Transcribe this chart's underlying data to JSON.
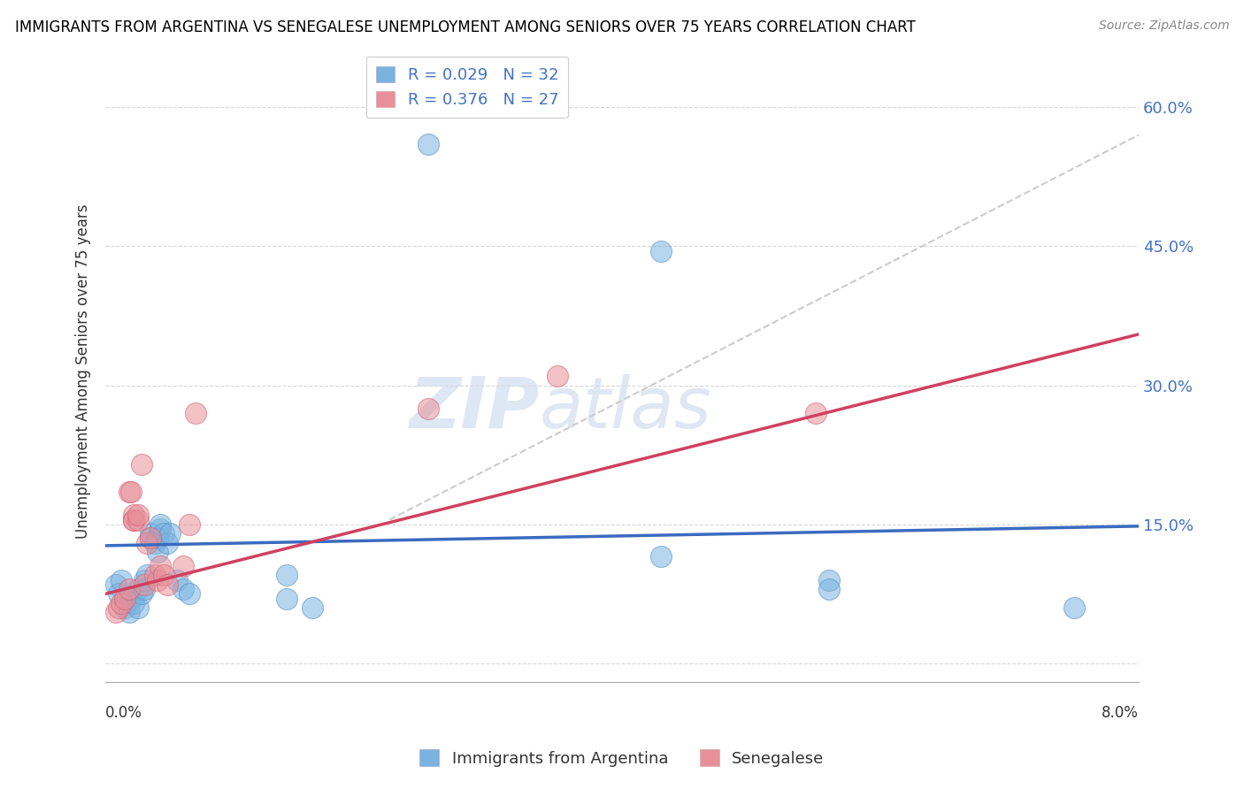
{
  "title": "IMMIGRANTS FROM ARGENTINA VS SENEGALESE UNEMPLOYMENT AMONG SENIORS OVER 75 YEARS CORRELATION CHART",
  "source": "Source: ZipAtlas.com",
  "ylabel": "Unemployment Among Seniors over 75 years",
  "yticks": [
    0.0,
    0.15,
    0.3,
    0.45,
    0.6
  ],
  "ytick_labels": [
    "",
    "15.0%",
    "30.0%",
    "45.0%",
    "60.0%"
  ],
  "xlim": [
    0.0,
    0.08
  ],
  "ylim": [
    -0.02,
    0.65
  ],
  "watermark_zip": "ZIP",
  "watermark_atlas": "atlas",
  "argentina_color": "#7ab3e0",
  "argentina_edge_color": "#5090c0",
  "senegalese_color": "#e8909a",
  "senegalese_edge_color": "#d06070",
  "argentina_trendline_color": "#3a6bbf",
  "senegalese_trendline_color": "#d04060",
  "gray_trendline_color": "#cccccc",
  "argentina_points": [
    [
      0.0008,
      0.085
    ],
    [
      0.001,
      0.075
    ],
    [
      0.0012,
      0.09
    ],
    [
      0.0015,
      0.06
    ],
    [
      0.0018,
      0.055
    ],
    [
      0.002,
      0.07
    ],
    [
      0.0022,
      0.065
    ],
    [
      0.0025,
      0.08
    ],
    [
      0.0025,
      0.06
    ],
    [
      0.0028,
      0.075
    ],
    [
      0.003,
      0.08
    ],
    [
      0.003,
      0.09
    ],
    [
      0.0032,
      0.095
    ],
    [
      0.0035,
      0.135
    ],
    [
      0.0035,
      0.14
    ],
    [
      0.0038,
      0.13
    ],
    [
      0.004,
      0.12
    ],
    [
      0.004,
      0.135
    ],
    [
      0.0042,
      0.145
    ],
    [
      0.0042,
      0.15
    ],
    [
      0.0045,
      0.14
    ],
    [
      0.0048,
      0.13
    ],
    [
      0.005,
      0.14
    ],
    [
      0.0055,
      0.09
    ],
    [
      0.006,
      0.08
    ],
    [
      0.0065,
      0.075
    ],
    [
      0.014,
      0.095
    ],
    [
      0.014,
      0.07
    ],
    [
      0.016,
      0.06
    ],
    [
      0.025,
      0.56
    ],
    [
      0.043,
      0.445
    ],
    [
      0.043,
      0.115
    ],
    [
      0.056,
      0.09
    ],
    [
      0.056,
      0.08
    ],
    [
      0.075,
      0.06
    ]
  ],
  "senegalese_points": [
    [
      0.0008,
      0.055
    ],
    [
      0.001,
      0.06
    ],
    [
      0.0012,
      0.065
    ],
    [
      0.0015,
      0.07
    ],
    [
      0.0018,
      0.08
    ],
    [
      0.0018,
      0.185
    ],
    [
      0.002,
      0.185
    ],
    [
      0.0022,
      0.155
    ],
    [
      0.0022,
      0.16
    ],
    [
      0.0022,
      0.155
    ],
    [
      0.0025,
      0.155
    ],
    [
      0.0025,
      0.16
    ],
    [
      0.0028,
      0.215
    ],
    [
      0.003,
      0.085
    ],
    [
      0.0032,
      0.13
    ],
    [
      0.0035,
      0.135
    ],
    [
      0.0038,
      0.095
    ],
    [
      0.004,
      0.09
    ],
    [
      0.0042,
      0.105
    ],
    [
      0.0045,
      0.095
    ],
    [
      0.0048,
      0.085
    ],
    [
      0.006,
      0.105
    ],
    [
      0.0065,
      0.15
    ],
    [
      0.007,
      0.27
    ],
    [
      0.025,
      0.275
    ],
    [
      0.035,
      0.31
    ],
    [
      0.055,
      0.27
    ]
  ],
  "arg_trend_x0": 0.0,
  "arg_trend_y0": 0.127,
  "arg_trend_x1": 0.08,
  "arg_trend_y1": 0.148,
  "sen_trend_x0": 0.0,
  "sen_trend_y0": 0.075,
  "sen_trend_x1": 0.08,
  "sen_trend_y1": 0.355,
  "gray_trend_x0": 0.022,
  "gray_trend_y0": 0.155,
  "gray_trend_x1": 0.08,
  "gray_trend_y1": 0.57
}
